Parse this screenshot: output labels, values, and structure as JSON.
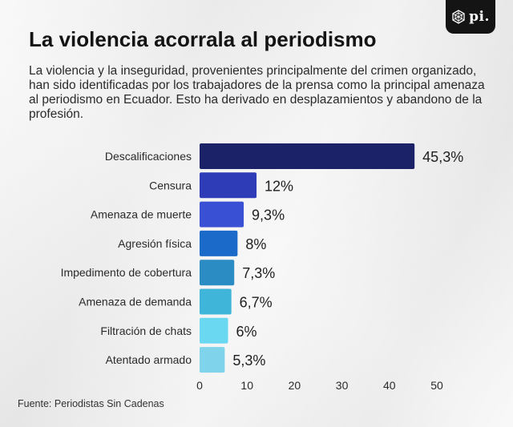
{
  "header": {
    "title": "La violencia acorrala al periodismo",
    "subtitle": "La violencia y la inseguridad, provenientes principalmente del crimen organizado, han sido identificadas por los trabajadores de la prensa como la principal amenaza al periodismo en Ecuador. Esto ha derivado en desplazamientos y abandono de la profesión."
  },
  "logo": {
    "text": "pi.",
    "icon": "geometric-knot-icon"
  },
  "source": "Fuente: Periodistas Sin Cadenas",
  "chart_data": {
    "type": "bar",
    "orientation": "horizontal",
    "categories": [
      "Descalificaciones",
      "Censura",
      "Amenaza de muerte",
      "Agresión física",
      "Impedimento de cobertura",
      "Amenaza de demanda",
      "Filtración de chats",
      "Atentado armado"
    ],
    "values": [
      45.3,
      12,
      9.3,
      8,
      7.3,
      6.7,
      6,
      5.3
    ],
    "value_labels": [
      "45,3%",
      "12%",
      "9,3%",
      "8%",
      "7,3%",
      "6,7%",
      "6%",
      "5,3%"
    ],
    "colors": [
      "#1b2268",
      "#2f3cb7",
      "#3a50d4",
      "#1b6ac9",
      "#2b8cc4",
      "#3fb6d9",
      "#6bd8f2",
      "#7fd3ea"
    ],
    "xlim": [
      0,
      50
    ],
    "xticks": [
      "0",
      "10",
      "20",
      "30",
      "40",
      "50"
    ],
    "xtick_values": [
      0,
      10,
      20,
      30,
      40,
      50
    ],
    "grid": false,
    "legend": "none"
  }
}
